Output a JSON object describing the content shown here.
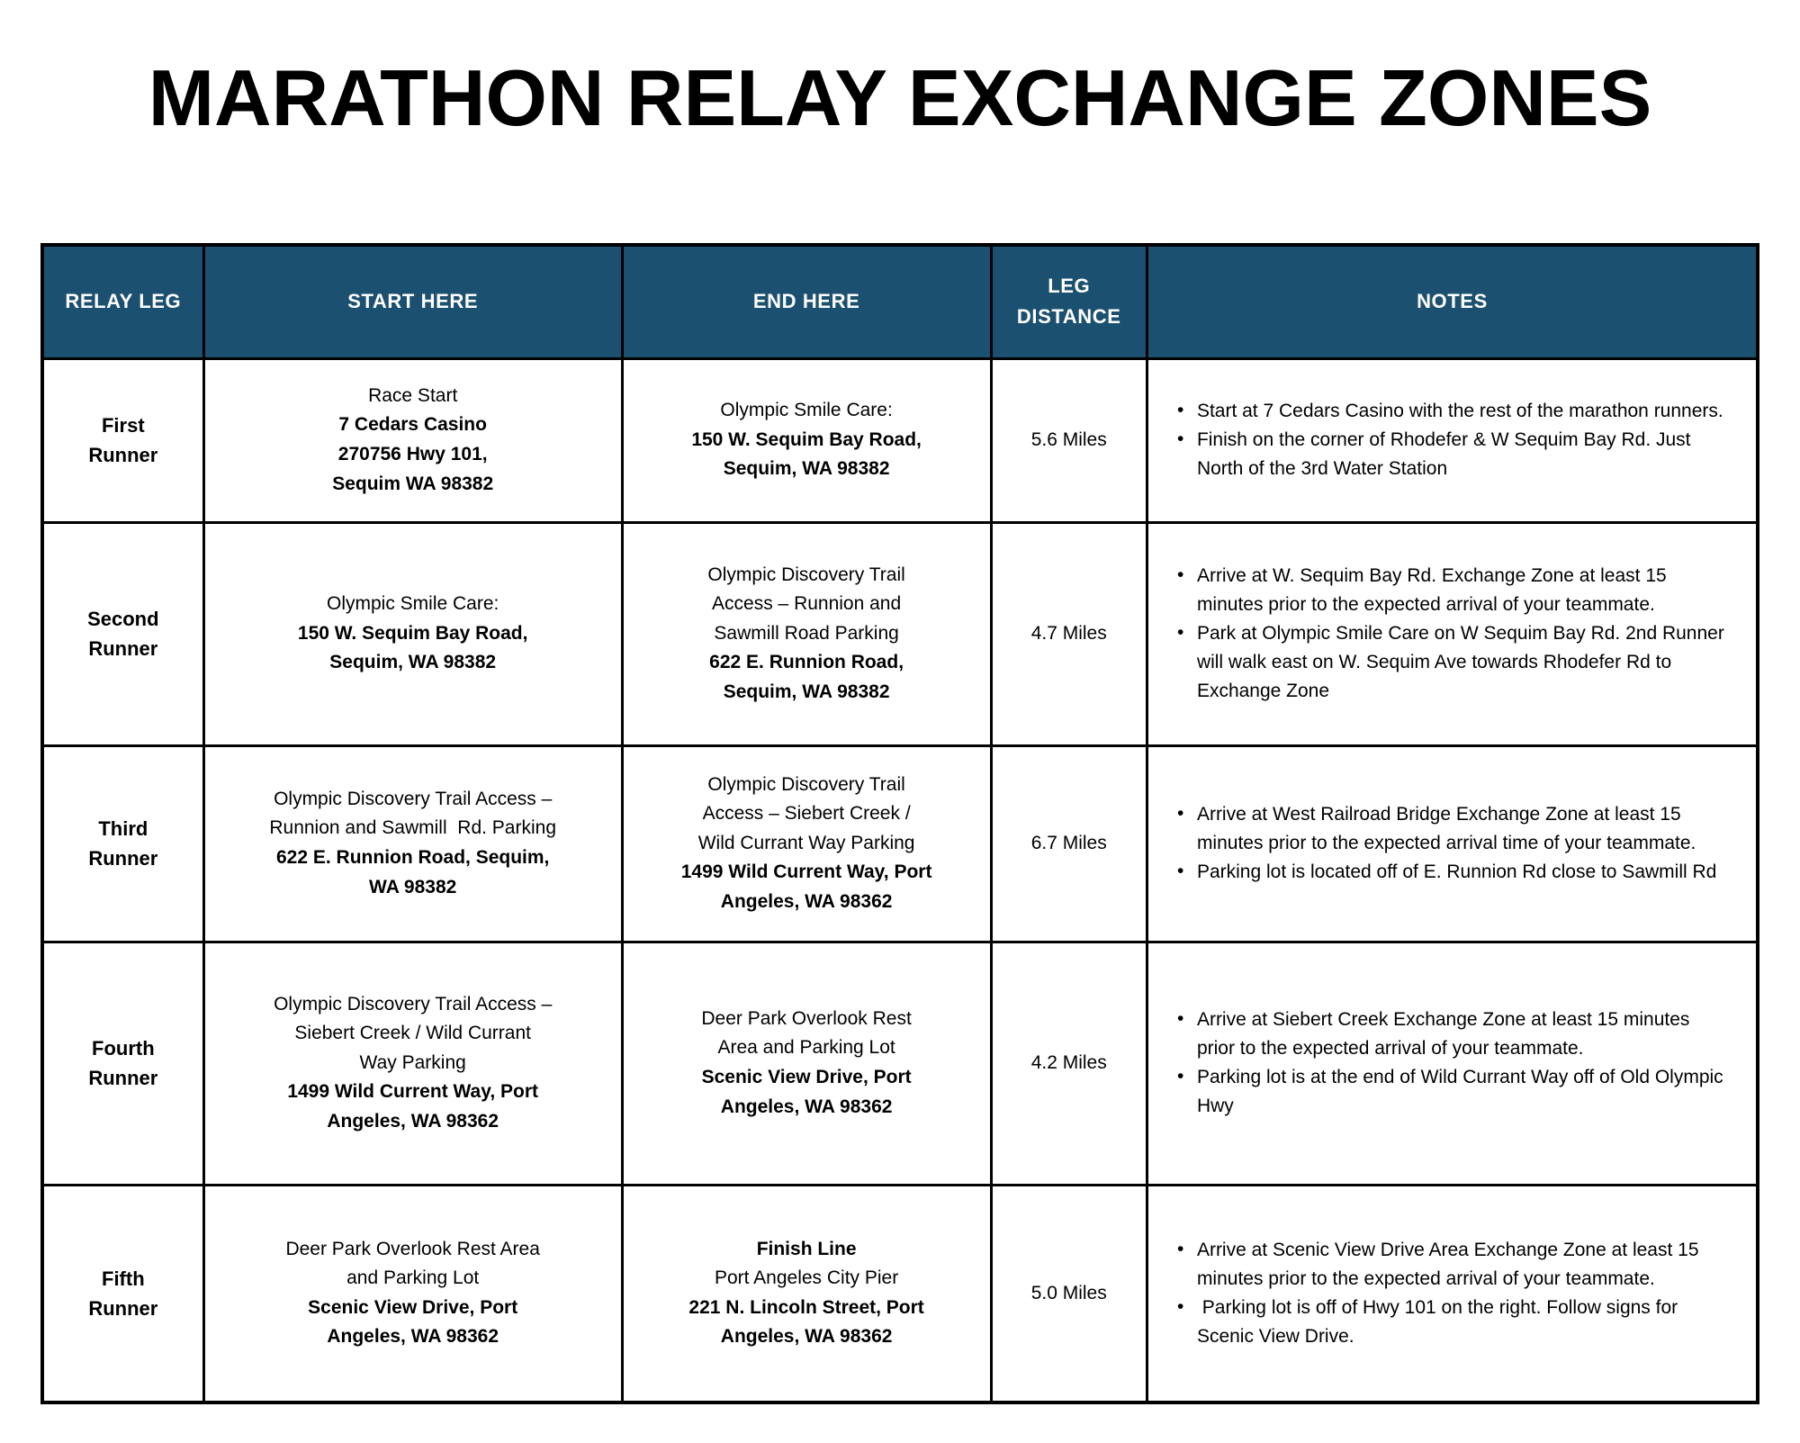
{
  "title": "MARATHON RELAY EXCHANGE ZONES",
  "colors": {
    "header_bg": "#1C5070",
    "header_text": "#FFFFFF",
    "border": "#000000"
  },
  "table": {
    "headers": [
      "RELAY LEG",
      "START HERE",
      "END HERE",
      "LEG DISTANCE",
      "NOTES"
    ],
    "rows": [
      {
        "leg": [
          "First",
          "Runner"
        ],
        "start": [
          {
            "text": "Race Start",
            "bold": false
          },
          {
            "text": "7 Cedars Casino",
            "bold": true
          },
          {
            "text": "270756 Hwy 101,",
            "bold": true
          },
          {
            "text": "Sequim WA 98382",
            "bold": true
          }
        ],
        "end": [
          {
            "text": "Olympic Smile Care:",
            "bold": false
          },
          {
            "text": "150 W. Sequim Bay Road,",
            "bold": true
          },
          {
            "text": "Sequim, WA 98382",
            "bold": true
          }
        ],
        "distance": "5.6 Miles",
        "notes": [
          "Start at 7 Cedars Casino with the rest of the marathon runners.",
          "Finish on the corner of Rhodefer & W Sequim Bay Rd. Just North of the 3rd Water Station"
        ]
      },
      {
        "leg": [
          "Second",
          "Runner"
        ],
        "start": [
          {
            "text": "Olympic Smile Care:",
            "bold": false
          },
          {
            "text": "150 W. Sequim Bay Road,",
            "bold": true
          },
          {
            "text": "Sequim, WA 98382",
            "bold": true
          }
        ],
        "end": [
          {
            "text": "Olympic Discovery Trail",
            "bold": false
          },
          {
            "text": "Access – Runnion and",
            "bold": false
          },
          {
            "text": "Sawmill Road Parking",
            "bold": false
          },
          {
            "text": "622 E. Runnion Road,",
            "bold": true
          },
          {
            "text": "Sequim, WA 98382",
            "bold": true
          }
        ],
        "distance": "4.7 Miles",
        "notes": [
          "Arrive at W. Sequim Bay Rd. Exchange Zone at least 15 minutes prior to the expected arrival of your teammate.",
          "Park at Olympic Smile Care on W Sequim Bay Rd. 2nd Runner will walk east on W. Sequim Ave towards Rhodefer Rd to Exchange Zone"
        ]
      },
      {
        "leg": [
          "Third",
          "Runner"
        ],
        "start": [
          {
            "text": "Olympic Discovery Trail Access –",
            "bold": false
          },
          {
            "text": "Runnion and Sawmill  Rd. Parking",
            "bold": false
          },
          {
            "text": "622 E. Runnion Road, Sequim,",
            "bold": true
          },
          {
            "text": "WA 98382",
            "bold": true
          }
        ],
        "end": [
          {
            "text": "Olympic Discovery Trail",
            "bold": false
          },
          {
            "text": "Access – Siebert Creek /",
            "bold": false
          },
          {
            "text": "Wild Currant Way Parking",
            "bold": false
          },
          {
            "text": "1499 Wild Current Way, Port",
            "bold": true
          },
          {
            "text": "Angeles, WA 98362",
            "bold": true
          }
        ],
        "distance": "6.7 Miles",
        "notes": [
          "Arrive at West Railroad Bridge Exchange Zone at least 15 minutes prior to the expected arrival time of your teammate.",
          "Parking lot is located off of E. Runnion Rd close to Sawmill Rd"
        ]
      },
      {
        "leg": [
          "Fourth",
          "Runner"
        ],
        "start": [
          {
            "text": "Olympic Discovery Trail Access –",
            "bold": false
          },
          {
            "text": "Siebert Creek / Wild Currant",
            "bold": false
          },
          {
            "text": "Way Parking",
            "bold": false
          },
          {
            "text": "1499 Wild Current Way, Port",
            "bold": true
          },
          {
            "text": "Angeles, WA 98362",
            "bold": true
          }
        ],
        "end": [
          {
            "text": "Deer Park Overlook Rest",
            "bold": false
          },
          {
            "text": "Area and Parking Lot",
            "bold": false
          },
          {
            "text": "Scenic View Drive, Port",
            "bold": true
          },
          {
            "text": "Angeles, WA 98362",
            "bold": true
          }
        ],
        "distance": "4.2 Miles",
        "notes": [
          "Arrive at Siebert Creek Exchange Zone at least 15 minutes prior to the expected arrival of your teammate.",
          "Parking lot is at the end of Wild Currant Way off of Old Olympic Hwy"
        ]
      },
      {
        "leg": [
          "Fifth",
          "Runner"
        ],
        "start": [
          {
            "text": "Deer Park Overlook Rest Area",
            "bold": false
          },
          {
            "text": "and Parking Lot",
            "bold": false
          },
          {
            "text": "Scenic View Drive, Port",
            "bold": true
          },
          {
            "text": "Angeles, WA 98362",
            "bold": true
          }
        ],
        "end": [
          {
            "text": "Finish Line",
            "bold": true
          },
          {
            "text": "Port Angeles City Pier",
            "bold": false
          },
          {
            "text": "221 N. Lincoln Street, Port",
            "bold": true
          },
          {
            "text": "Angeles, WA 98362",
            "bold": true
          }
        ],
        "distance": "5.0 Miles",
        "notes": [
          "Arrive at Scenic View Drive Area Exchange Zone at least 15 minutes prior to the expected arrival of your teammate.",
          " Parking lot is off of Hwy 101 on the right. Follow signs for Scenic View Drive."
        ]
      }
    ]
  }
}
